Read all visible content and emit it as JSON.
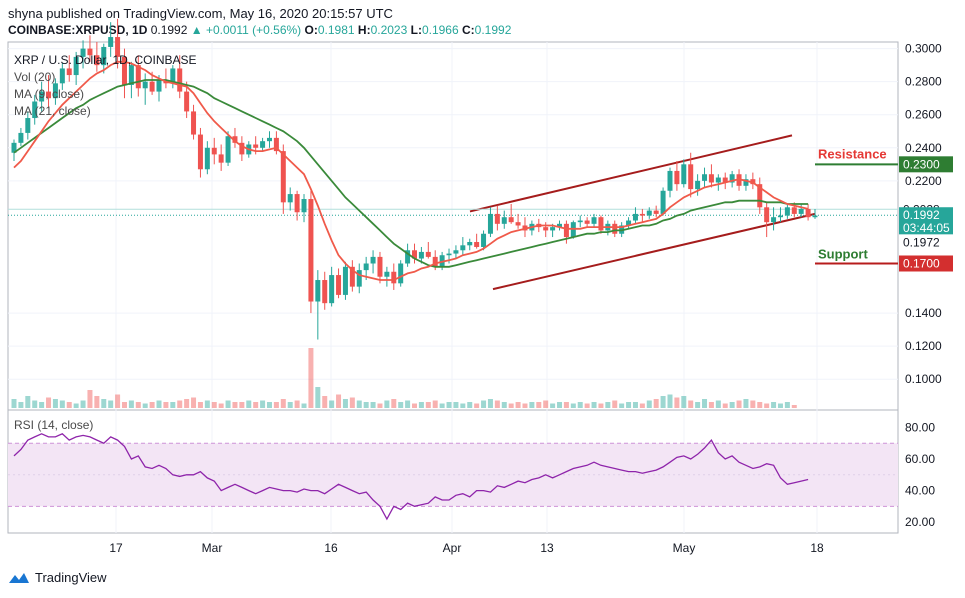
{
  "header": {
    "published": "shyna published on TradingView.com, May 16, 2020 20:15:57 UTC",
    "symbol": "COINBASE:XRPUSD, 1D",
    "last": "0.1992",
    "change": "+0.0011 (+0.56%)",
    "o_label": "O:",
    "o_val": "0.1981",
    "h_label": "H:",
    "h_val": "0.2023",
    "l_label": "L:",
    "l_val": "0.1966",
    "c_label": "C:",
    "c_val": "0.1992"
  },
  "legend": {
    "title": "XRP / U.S. Dollar, 1D, COINBASE",
    "vol": "Vol (20)",
    "ma9": "MA (9, close)",
    "ma21": "MA (21, close)",
    "rsi": "RSI (14, close)"
  },
  "annotations": {
    "resistance": "Resistance",
    "support": "Support"
  },
  "footer": {
    "brand": "TradingView"
  },
  "colors": {
    "up": "#26a69a",
    "down": "#ef5350",
    "ma9": "#f05a4a",
    "ma21": "#3a8a3a",
    "channel": "#a51c1c",
    "resistance_line": "#2e7d32",
    "support_line": "#b71c1c",
    "rsi_line": "#8e24aa",
    "rsi_band": "#f3e5f5"
  },
  "chart_data": [
    {
      "type": "candlestick",
      "title": "XRP / U.S. Dollar, 1D, COINBASE",
      "x_ticks": [
        "17",
        "Mar",
        "16",
        "Apr",
        "13",
        "May",
        "18"
      ],
      "y_ticks": [
        "0.3000",
        "0.2800",
        "0.2600",
        "0.2400",
        "0.2200",
        "0.2028",
        "0.1992",
        "0.1972",
        "0.1400",
        "0.1200",
        "0.1000"
      ],
      "price_labels": [
        {
          "label": "0.2300",
          "value": 0.23,
          "color": "#2e7d32"
        },
        {
          "label": "0.2028",
          "value": 0.2028,
          "color": "#ffffff"
        },
        {
          "label": "0.1992",
          "value": 0.1992,
          "color": "#26a69a"
        },
        {
          "label": "03:44:05",
          "value": 0.1914,
          "color": "#26a69a"
        },
        {
          "label": "0.1972",
          "value": 0.1828,
          "color": "#ffffff"
        },
        {
          "label": "0.1700",
          "value": 0.17,
          "color": "#d32f2f"
        }
      ],
      "ylim": [
        0.085,
        0.304
      ],
      "candles": [
        [
          0.237,
          0.245,
          0.232,
          0.243
        ],
        [
          0.243,
          0.252,
          0.241,
          0.249
        ],
        [
          0.249,
          0.262,
          0.245,
          0.258
        ],
        [
          0.258,
          0.272,
          0.254,
          0.268
        ],
        [
          0.268,
          0.28,
          0.262,
          0.274
        ],
        [
          0.274,
          0.284,
          0.264,
          0.27
        ],
        [
          0.27,
          0.282,
          0.266,
          0.279
        ],
        [
          0.279,
          0.291,
          0.275,
          0.288
        ],
        [
          0.288,
          0.296,
          0.28,
          0.284
        ],
        [
          0.284,
          0.298,
          0.278,
          0.295
        ],
        [
          0.295,
          0.305,
          0.288,
          0.3
        ],
        [
          0.3,
          0.308,
          0.292,
          0.296
        ],
        [
          0.296,
          0.304,
          0.286,
          0.29
        ],
        [
          0.29,
          0.303,
          0.285,
          0.301
        ],
        [
          0.301,
          0.316,
          0.295,
          0.307
        ],
        [
          0.307,
          0.318,
          0.288,
          0.295
        ],
        [
          0.295,
          0.3,
          0.27,
          0.278
        ],
        [
          0.278,
          0.292,
          0.27,
          0.29
        ],
        [
          0.29,
          0.296,
          0.271,
          0.276
        ],
        [
          0.276,
          0.285,
          0.266,
          0.28
        ],
        [
          0.28,
          0.286,
          0.272,
          0.274
        ],
        [
          0.274,
          0.284,
          0.268,
          0.281
        ],
        [
          0.281,
          0.288,
          0.276,
          0.279
        ],
        [
          0.279,
          0.29,
          0.276,
          0.288
        ],
        [
          0.288,
          0.296,
          0.27,
          0.274
        ],
        [
          0.274,
          0.28,
          0.258,
          0.262
        ],
        [
          0.262,
          0.266,
          0.245,
          0.248
        ],
        [
          0.248,
          0.252,
          0.222,
          0.227
        ],
        [
          0.227,
          0.244,
          0.224,
          0.24
        ],
        [
          0.24,
          0.246,
          0.23,
          0.236
        ],
        [
          0.236,
          0.242,
          0.226,
          0.231
        ],
        [
          0.231,
          0.25,
          0.229,
          0.247
        ],
        [
          0.247,
          0.252,
          0.24,
          0.243
        ],
        [
          0.243,
          0.247,
          0.232,
          0.236
        ],
        [
          0.236,
          0.244,
          0.234,
          0.242
        ],
        [
          0.242,
          0.247,
          0.236,
          0.24
        ],
        [
          0.24,
          0.246,
          0.238,
          0.244
        ],
        [
          0.244,
          0.25,
          0.24,
          0.246
        ],
        [
          0.246,
          0.25,
          0.236,
          0.238
        ],
        [
          0.238,
          0.242,
          0.2,
          0.207
        ],
        [
          0.207,
          0.216,
          0.202,
          0.212
        ],
        [
          0.212,
          0.214,
          0.196,
          0.201
        ],
        [
          0.201,
          0.212,
          0.195,
          0.209
        ],
        [
          0.209,
          0.214,
          0.14,
          0.147
        ],
        [
          0.147,
          0.166,
          0.124,
          0.16
        ],
        [
          0.16,
          0.165,
          0.142,
          0.146
        ],
        [
          0.146,
          0.168,
          0.144,
          0.163
        ],
        [
          0.163,
          0.167,
          0.149,
          0.151
        ],
        [
          0.151,
          0.171,
          0.148,
          0.168
        ],
        [
          0.168,
          0.172,
          0.153,
          0.156
        ],
        [
          0.156,
          0.17,
          0.152,
          0.166
        ],
        [
          0.166,
          0.174,
          0.16,
          0.17
        ],
        [
          0.17,
          0.178,
          0.164,
          0.174
        ],
        [
          0.174,
          0.177,
          0.158,
          0.162
        ],
        [
          0.162,
          0.168,
          0.156,
          0.165
        ],
        [
          0.165,
          0.17,
          0.154,
          0.158
        ],
        [
          0.158,
          0.172,
          0.156,
          0.17
        ],
        [
          0.17,
          0.182,
          0.168,
          0.178
        ],
        [
          0.178,
          0.182,
          0.17,
          0.173
        ],
        [
          0.173,
          0.18,
          0.17,
          0.177
        ],
        [
          0.177,
          0.183,
          0.173,
          0.174
        ],
        [
          0.174,
          0.178,
          0.166,
          0.168
        ],
        [
          0.168,
          0.177,
          0.166,
          0.175
        ],
        [
          0.175,
          0.179,
          0.17,
          0.176
        ],
        [
          0.176,
          0.181,
          0.173,
          0.178
        ],
        [
          0.178,
          0.186,
          0.175,
          0.181
        ],
        [
          0.181,
          0.185,
          0.178,
          0.183
        ],
        [
          0.183,
          0.188,
          0.179,
          0.18
        ],
        [
          0.18,
          0.19,
          0.178,
          0.188
        ],
        [
          0.188,
          0.204,
          0.186,
          0.2
        ],
        [
          0.2,
          0.205,
          0.19,
          0.194
        ],
        [
          0.194,
          0.202,
          0.191,
          0.198
        ],
        [
          0.198,
          0.206,
          0.194,
          0.195
        ],
        [
          0.195,
          0.2,
          0.191,
          0.193
        ],
        [
          0.193,
          0.198,
          0.186,
          0.19
        ],
        [
          0.19,
          0.196,
          0.187,
          0.194
        ],
        [
          0.194,
          0.197,
          0.189,
          0.192
        ],
        [
          0.192,
          0.195,
          0.186,
          0.19
        ],
        [
          0.19,
          0.194,
          0.186,
          0.192
        ],
        [
          0.192,
          0.196,
          0.19,
          0.194
        ],
        [
          0.194,
          0.196,
          0.182,
          0.186
        ],
        [
          0.186,
          0.196,
          0.185,
          0.195
        ],
        [
          0.195,
          0.199,
          0.192,
          0.196
        ],
        [
          0.196,
          0.198,
          0.192,
          0.194
        ],
        [
          0.194,
          0.2,
          0.192,
          0.198
        ],
        [
          0.198,
          0.199,
          0.188,
          0.19
        ],
        [
          0.19,
          0.196,
          0.187,
          0.194
        ],
        [
          0.194,
          0.196,
          0.186,
          0.188
        ],
        [
          0.188,
          0.195,
          0.186,
          0.193
        ],
        [
          0.193,
          0.198,
          0.191,
          0.196
        ],
        [
          0.196,
          0.204,
          0.194,
          0.2
        ],
        [
          0.2,
          0.203,
          0.195,
          0.199
        ],
        [
          0.199,
          0.204,
          0.197,
          0.202
        ],
        [
          0.202,
          0.205,
          0.198,
          0.2
        ],
        [
          0.2,
          0.216,
          0.199,
          0.214
        ],
        [
          0.214,
          0.228,
          0.21,
          0.226
        ],
        [
          0.226,
          0.232,
          0.214,
          0.218
        ],
        [
          0.218,
          0.233,
          0.216,
          0.23
        ],
        [
          0.23,
          0.237,
          0.21,
          0.215
        ],
        [
          0.215,
          0.224,
          0.211,
          0.22
        ],
        [
          0.22,
          0.228,
          0.216,
          0.224
        ],
        [
          0.224,
          0.23,
          0.216,
          0.219
        ],
        [
          0.219,
          0.224,
          0.214,
          0.222
        ],
        [
          0.222,
          0.225,
          0.215,
          0.219
        ],
        [
          0.219,
          0.226,
          0.216,
          0.224
        ],
        [
          0.224,
          0.227,
          0.214,
          0.217
        ],
        [
          0.217,
          0.224,
          0.214,
          0.221
        ],
        [
          0.221,
          0.225,
          0.215,
          0.218
        ],
        [
          0.218,
          0.222,
          0.2,
          0.204
        ],
        [
          0.204,
          0.207,
          0.186,
          0.195
        ],
        [
          0.195,
          0.204,
          0.19,
          0.198
        ],
        [
          0.198,
          0.204,
          0.195,
          0.199
        ],
        [
          0.199,
          0.206,
          0.197,
          0.204
        ],
        [
          0.204,
          0.207,
          0.198,
          0.2
        ],
        [
          0.2,
          0.206,
          0.198,
          0.203
        ],
        [
          0.203,
          0.206,
          0.196,
          0.198
        ],
        [
          0.198,
          0.203,
          0.197,
          0.199
        ]
      ],
      "volume": [
        6,
        4,
        8,
        5,
        4,
        7,
        6,
        5,
        4,
        3,
        5,
        12,
        8,
        6,
        5,
        9,
        4,
        5,
        4,
        3,
        4,
        5,
        4,
        4,
        5,
        6,
        7,
        4,
        5,
        4,
        3,
        5,
        4,
        4,
        5,
        4,
        5,
        4,
        4,
        6,
        4,
        5,
        3,
        40,
        14,
        8,
        5,
        9,
        6,
        7,
        5,
        4,
        4,
        3,
        5,
        6,
        4,
        5,
        3,
        4,
        4,
        5,
        3,
        4,
        4,
        3,
        4,
        3,
        5,
        6,
        5,
        4,
        3,
        4,
        3,
        4,
        4,
        5,
        3,
        4,
        4,
        3,
        4,
        3,
        4,
        3,
        4,
        5,
        3,
        4,
        4,
        3,
        5,
        6,
        8,
        9,
        7,
        8,
        5,
        4,
        6,
        4,
        5,
        3,
        4,
        5,
        6,
        5,
        4,
        3,
        4,
        3,
        4,
        2
      ],
      "ma9": [
        0.228,
        0.232,
        0.238,
        0.244,
        0.25,
        0.256,
        0.261,
        0.266,
        0.27,
        0.274,
        0.278,
        0.282,
        0.285,
        0.287,
        0.29,
        0.292,
        0.292,
        0.291,
        0.289,
        0.287,
        0.284,
        0.282,
        0.28,
        0.279,
        0.278,
        0.277,
        0.273,
        0.267,
        0.261,
        0.256,
        0.252,
        0.248,
        0.244,
        0.241,
        0.239,
        0.238,
        0.238,
        0.239,
        0.24,
        0.236,
        0.232,
        0.228,
        0.224,
        0.215,
        0.205,
        0.194,
        0.184,
        0.175,
        0.17,
        0.166,
        0.163,
        0.162,
        0.161,
        0.16,
        0.16,
        0.16,
        0.162,
        0.164,
        0.165,
        0.167,
        0.168,
        0.17,
        0.171,
        0.172,
        0.173,
        0.175,
        0.176,
        0.177,
        0.179,
        0.182,
        0.185,
        0.187,
        0.189,
        0.19,
        0.191,
        0.192,
        0.193,
        0.193,
        0.193,
        0.192,
        0.191,
        0.191,
        0.191,
        0.192,
        0.192,
        0.192,
        0.192,
        0.192,
        0.192,
        0.193,
        0.194,
        0.195,
        0.196,
        0.197,
        0.2,
        0.204,
        0.207,
        0.21,
        0.212,
        0.214,
        0.216,
        0.217,
        0.218,
        0.219,
        0.22,
        0.221,
        0.22,
        0.219,
        0.216,
        0.213,
        0.21,
        0.208,
        0.206,
        0.205,
        0.204,
        0.203
      ],
      "ma21": [
        0.237,
        0.24,
        0.243,
        0.246,
        0.249,
        0.252,
        0.255,
        0.258,
        0.261,
        0.264,
        0.266,
        0.269,
        0.271,
        0.273,
        0.275,
        0.277,
        0.278,
        0.279,
        0.28,
        0.281,
        0.281,
        0.281,
        0.281,
        0.28,
        0.279,
        0.278,
        0.277,
        0.275,
        0.273,
        0.27,
        0.268,
        0.266,
        0.264,
        0.262,
        0.26,
        0.258,
        0.256,
        0.254,
        0.252,
        0.25,
        0.247,
        0.244,
        0.24,
        0.235,
        0.23,
        0.225,
        0.22,
        0.215,
        0.21,
        0.206,
        0.202,
        0.198,
        0.194,
        0.19,
        0.186,
        0.182,
        0.179,
        0.176,
        0.173,
        0.171,
        0.169,
        0.168,
        0.168,
        0.168,
        0.169,
        0.17,
        0.171,
        0.172,
        0.173,
        0.174,
        0.175,
        0.176,
        0.177,
        0.178,
        0.179,
        0.18,
        0.181,
        0.182,
        0.183,
        0.184,
        0.185,
        0.186,
        0.187,
        0.188,
        0.188,
        0.189,
        0.189,
        0.19,
        0.19,
        0.191,
        0.192,
        0.193,
        0.193,
        0.194,
        0.196,
        0.197,
        0.199,
        0.2,
        0.202,
        0.203,
        0.204,
        0.205,
        0.206,
        0.207,
        0.207,
        0.208,
        0.208,
        0.208,
        0.208,
        0.207,
        0.207,
        0.207,
        0.206,
        0.206,
        0.206,
        0.206
      ]
    },
    {
      "type": "line",
      "title": "RSI (14, close)",
      "y_ticks": [
        "80.00",
        "60.00",
        "40.00",
        "20.00"
      ],
      "ylim": [
        15,
        86
      ],
      "bands": [
        30,
        70
      ],
      "values": [
        62,
        66,
        72,
        74,
        76,
        74,
        74,
        76,
        72,
        74,
        75,
        74,
        72,
        70,
        74,
        72,
        68,
        60,
        62,
        55,
        54,
        56,
        54,
        50,
        49,
        50,
        50,
        52,
        48,
        46,
        40,
        42,
        44,
        42,
        40,
        38,
        40,
        42,
        41,
        40,
        40,
        39,
        41,
        40,
        40,
        38,
        41,
        44,
        42,
        40,
        38,
        39,
        34,
        30,
        22,
        30,
        28,
        32,
        30,
        31,
        32,
        36,
        34,
        34,
        37,
        38,
        36,
        40,
        40,
        39,
        43,
        42,
        44,
        46,
        45,
        47,
        48,
        50,
        48,
        50,
        52,
        54,
        55,
        56,
        58,
        56,
        55,
        54,
        53,
        52,
        52,
        51,
        52,
        53,
        55,
        58,
        61,
        62,
        60,
        63,
        67,
        72,
        64,
        60,
        62,
        58,
        56,
        54,
        55,
        57,
        56,
        48,
        44,
        45,
        46,
        47
      ]
    }
  ]
}
